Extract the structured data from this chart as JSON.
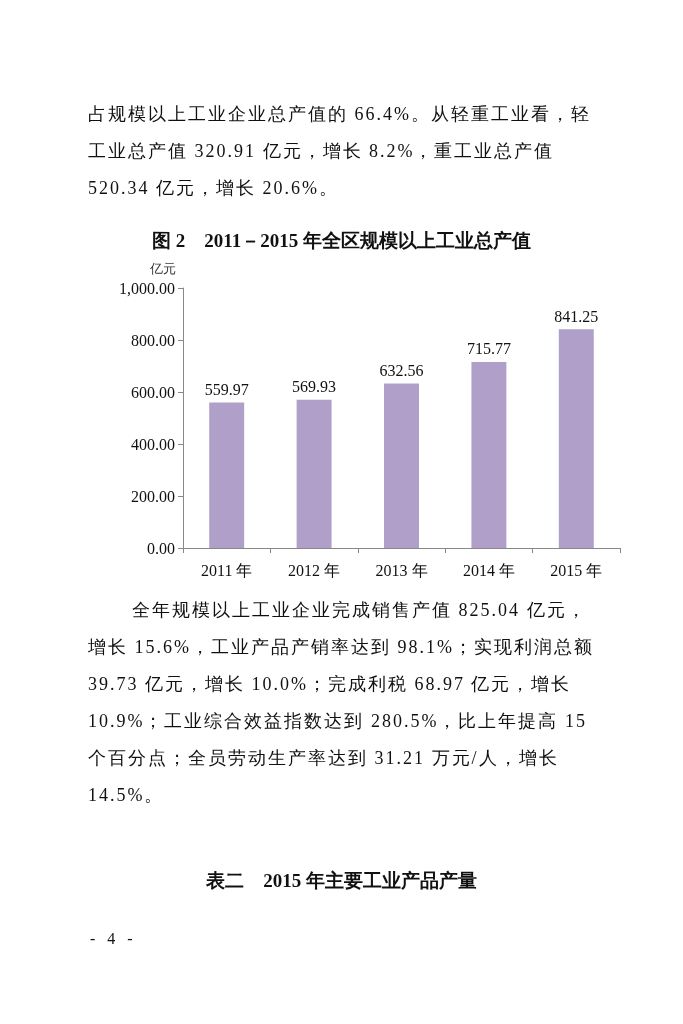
{
  "chart_data": {
    "type": "bar",
    "title": "图 2　2011－2015 年全区规模以上工业总产值",
    "ylabel": "亿元",
    "categories": [
      "2011 年",
      "2012 年",
      "2013 年",
      "2014 年",
      "2015 年"
    ],
    "values": [
      559.97,
      569.93,
      632.56,
      715.77,
      841.25
    ],
    "color": "#b09fc8",
    "ylim": [
      0,
      1000
    ],
    "yticks": [
      {
        "value": 0,
        "label": "0.00"
      },
      {
        "value": 200,
        "label": "200.00"
      },
      {
        "value": 400,
        "label": "400.00"
      },
      {
        "value": 600,
        "label": "600.00"
      },
      {
        "value": 800,
        "label": "800.00"
      },
      {
        "value": 1000,
        "label": "1,000.00"
      }
    ],
    "grid": false,
    "data_labels": true,
    "annotations": [
      "占规模以上工业企业总产值的 66.4%。从轻重工业看，轻工业总产值 320.91 亿元，增长 8.2%，重工业总产值 520.34 亿元，增长 20.6%。",
      "全年规模以上工业企业完成销售产值 825.04 亿元，增长 15.6%，工业产品产销率达到 98.1%；实现利润总额 39.73 亿元，增长 10.0%；完成利税 68.97 亿元，增长 10.9%；工业综合效益指数达到 280.5%，比上年提高 15 个百分点；全员劳动生产率达到 31.21 万元/人，增长 14.5%。",
      "表二　2015 年主要工业产品产量",
      "- 4 -"
    ]
  }
}
